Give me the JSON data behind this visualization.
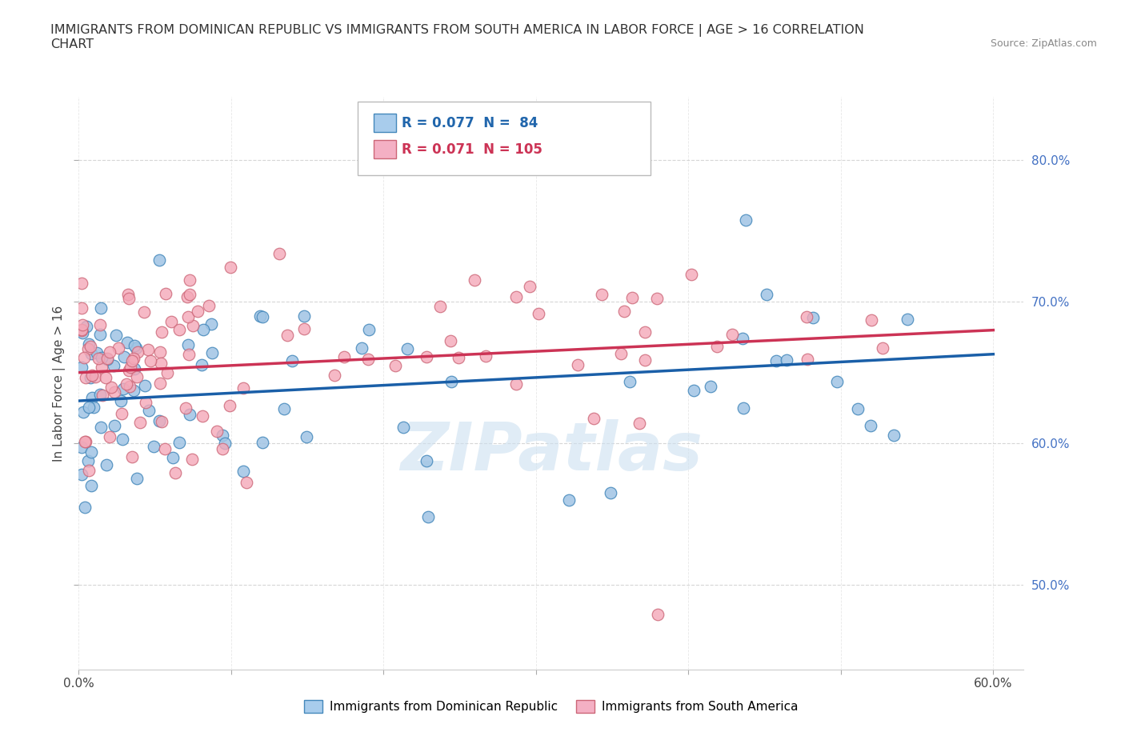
{
  "title_line1": "IMMIGRANTS FROM DOMINICAN REPUBLIC VS IMMIGRANTS FROM SOUTH AMERICA IN LABOR FORCE | AGE > 16 CORRELATION",
  "title_line2": "CHART",
  "source": "Source: ZipAtlas.com",
  "ylabel": "In Labor Force | Age > 16",
  "xlim": [
    0.0,
    0.62
  ],
  "ylim": [
    0.44,
    0.845
  ],
  "blue_color": "#a0c4e4",
  "blue_edge_color": "#4488bb",
  "pink_color": "#f4a8b8",
  "pink_edge_color": "#cc6677",
  "blue_line_color": "#1a5fa8",
  "pink_line_color": "#cc3355",
  "blue_trend_y0": 0.63,
  "blue_trend_y1": 0.663,
  "pink_trend_y0": 0.65,
  "pink_trend_y1": 0.68,
  "watermark": "ZIPatlas",
  "legend_label_blue": "Immigrants from Dominican Republic",
  "legend_label_pink": "Immigrants from South America"
}
